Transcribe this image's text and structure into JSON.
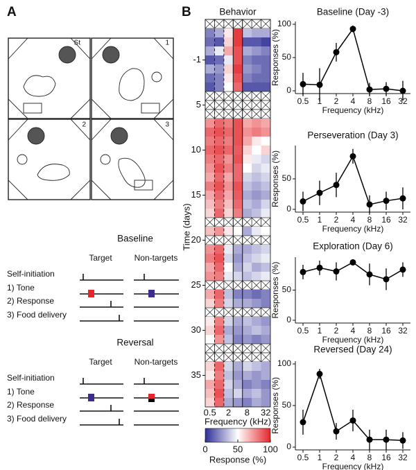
{
  "panel_labels": [
    "A",
    "B"
  ],
  "panel_a": {
    "arena_labels": [
      "St",
      "1",
      "2",
      "3"
    ],
    "schedules": [
      {
        "title": "Baseline",
        "columns": [
          "Target",
          "Non-targets"
        ],
        "rows": [
          "Self-initiation",
          "1) Tone",
          "2) Response",
          "3) Food delivery"
        ]
      },
      {
        "title": "Reversal",
        "columns": [
          "Target",
          "Non-targets"
        ],
        "rows": [
          "Self-initiation",
          "1) Tone",
          "2) Response",
          "3) Food delivery"
        ]
      }
    ]
  },
  "chart_data": [
    {
      "type": "heatmap",
      "title": "Behavior",
      "xlabel": "Frequency (kHz)",
      "ylabel": "Time (days)",
      "categories": [
        "0.5",
        null,
        "2",
        null,
        "8",
        null,
        "32"
      ],
      "y": [
        -5,
        -4,
        -3,
        -2,
        -1,
        1,
        2,
        3,
        4,
        5,
        6,
        7,
        8,
        9,
        10,
        11,
        12,
        13,
        14,
        15,
        16,
        17,
        18,
        19,
        20,
        21,
        22,
        23,
        24,
        25,
        26,
        27,
        28,
        29,
        30,
        31,
        32,
        33,
        34,
        35,
        36,
        37,
        38
      ],
      "yticks": [
        -1,
        5,
        10,
        15,
        20,
        25,
        30,
        35
      ],
      "values": [
        null,
        [
          20,
          30,
          55,
          95,
          35,
          30,
          30
        ],
        [
          15,
          10,
          60,
          95,
          10,
          10,
          5
        ],
        [
          30,
          45,
          70,
          90,
          30,
          25,
          20
        ],
        [
          10,
          15,
          45,
          90,
          20,
          15,
          15
        ],
        [
          30,
          25,
          60,
          95,
          25,
          20,
          15
        ],
        [
          15,
          20,
          55,
          90,
          20,
          15,
          15
        ],
        [
          10,
          20,
          50,
          85,
          10,
          10,
          10
        ],
        null,
        null,
        null,
        [
          75,
          85,
          80,
          90,
          70,
          75,
          70
        ],
        [
          85,
          90,
          85,
          90,
          75,
          80,
          75
        ],
        [
          80,
          85,
          80,
          90,
          70,
          55,
          50
        ],
        [
          85,
          90,
          85,
          88,
          60,
          50,
          60
        ],
        [
          80,
          85,
          75,
          90,
          55,
          45,
          40
        ],
        [
          75,
          90,
          80,
          85,
          50,
          40,
          45
        ],
        [
          70,
          85,
          70,
          85,
          40,
          35,
          40
        ],
        [
          80,
          90,
          75,
          90,
          35,
          30,
          35
        ],
        [
          70,
          85,
          70,
          88,
          30,
          25,
          30
        ],
        [
          65,
          80,
          65,
          85,
          35,
          30,
          40
        ],
        [
          60,
          85,
          60,
          80,
          30,
          35,
          45
        ],
        null,
        [
          65,
          75,
          55,
          50,
          30,
          45,
          50
        ],
        null,
        [
          75,
          85,
          45,
          30,
          30,
          35,
          40
        ],
        [
          80,
          90,
          40,
          25,
          35,
          40,
          45
        ],
        [
          70,
          85,
          50,
          30,
          40,
          30,
          35
        ],
        [
          75,
          80,
          45,
          40,
          35,
          40,
          45
        ],
        null,
        [
          70,
          85,
          35,
          20,
          20,
          15,
          20
        ],
        [
          60,
          80,
          40,
          30,
          30,
          25,
          20
        ],
        null,
        [
          55,
          80,
          40,
          30,
          35,
          30,
          25
        ],
        [
          60,
          85,
          30,
          25,
          30,
          35,
          30
        ],
        [
          50,
          75,
          35,
          20,
          25,
          20,
          25
        ],
        null,
        null,
        [
          60,
          85,
          40,
          30,
          40,
          35,
          30
        ],
        [
          55,
          80,
          35,
          25,
          30,
          25,
          30
        ],
        [
          70,
          85,
          40,
          30,
          20,
          25,
          20
        ],
        [
          65,
          90,
          35,
          40,
          30,
          35,
          25
        ],
        [
          60,
          85,
          30,
          25,
          20,
          30,
          25
        ]
      ],
      "colorbar": {
        "label": "Response (%)",
        "lim": [
          0,
          100
        ],
        "ticks": [
          0,
          50,
          100
        ],
        "colors": [
          "#2e2e96",
          "#ffffff",
          "#e3262b"
        ]
      }
    },
    {
      "type": "line",
      "title": "Baseline (Day -3)",
      "xlabel": "Frequency (kHz)",
      "ylabel": "Responses (%)",
      "categories": [
        "0.5",
        "1",
        "2",
        "4",
        "8",
        "16",
        "32"
      ],
      "ylim": [
        0,
        100
      ],
      "yticks": [
        0,
        50,
        100
      ],
      "series": [
        {
          "color": "#000000",
          "values": [
            10,
            9,
            58,
            93,
            2,
            3,
            0
          ],
          "errors": [
            17,
            25,
            14,
            5,
            10,
            10,
            15
          ]
        }
      ]
    },
    {
      "type": "line",
      "title": "Perseveration (Day 3)",
      "xlabel": "Frequency (kHz)",
      "ylabel": "Responses (%)",
      "categories": [
        "0.5",
        "1",
        "2",
        "4",
        "8",
        "16",
        "32"
      ],
      "ylim": [
        0,
        100
      ],
      "yticks": [
        0,
        50
      ],
      "series": [
        {
          "color": "#000000",
          "values": [
            13,
            27,
            40,
            87,
            8,
            14,
            18
          ],
          "errors": [
            16,
            20,
            20,
            12,
            15,
            15,
            18
          ]
        }
      ]
    },
    {
      "type": "line",
      "title": "Exploration (Day 6)",
      "xlabel": "Frequency (kHz)",
      "ylabel": "Responses (%)",
      "categories": [
        "0.5",
        "1",
        "2",
        "4",
        "8",
        "16",
        "32"
      ],
      "ylim": [
        0,
        100
      ],
      "yticks": [
        0,
        50
      ],
      "series": [
        {
          "color": "#000000",
          "values": [
            80,
            87,
            81,
            96,
            76,
            68,
            84
          ],
          "errors": [
            12,
            12,
            15,
            5,
            18,
            18,
            12
          ]
        }
      ]
    },
    {
      "type": "line",
      "title": "Reversed (Day 24)",
      "xlabel": "Frequency (kHz)",
      "ylabel": "Responses (%)",
      "categories": [
        "0.5",
        "1",
        "2",
        "4",
        "8",
        "16",
        "32"
      ],
      "ylim": [
        0,
        100
      ],
      "yticks": [
        0,
        50,
        100
      ],
      "series": [
        {
          "color": "#000000",
          "values": [
            30,
            88,
            19,
            32,
            9,
            9,
            8
          ],
          "errors": [
            15,
            6,
            10,
            13,
            12,
            12,
            10
          ]
        }
      ]
    }
  ]
}
